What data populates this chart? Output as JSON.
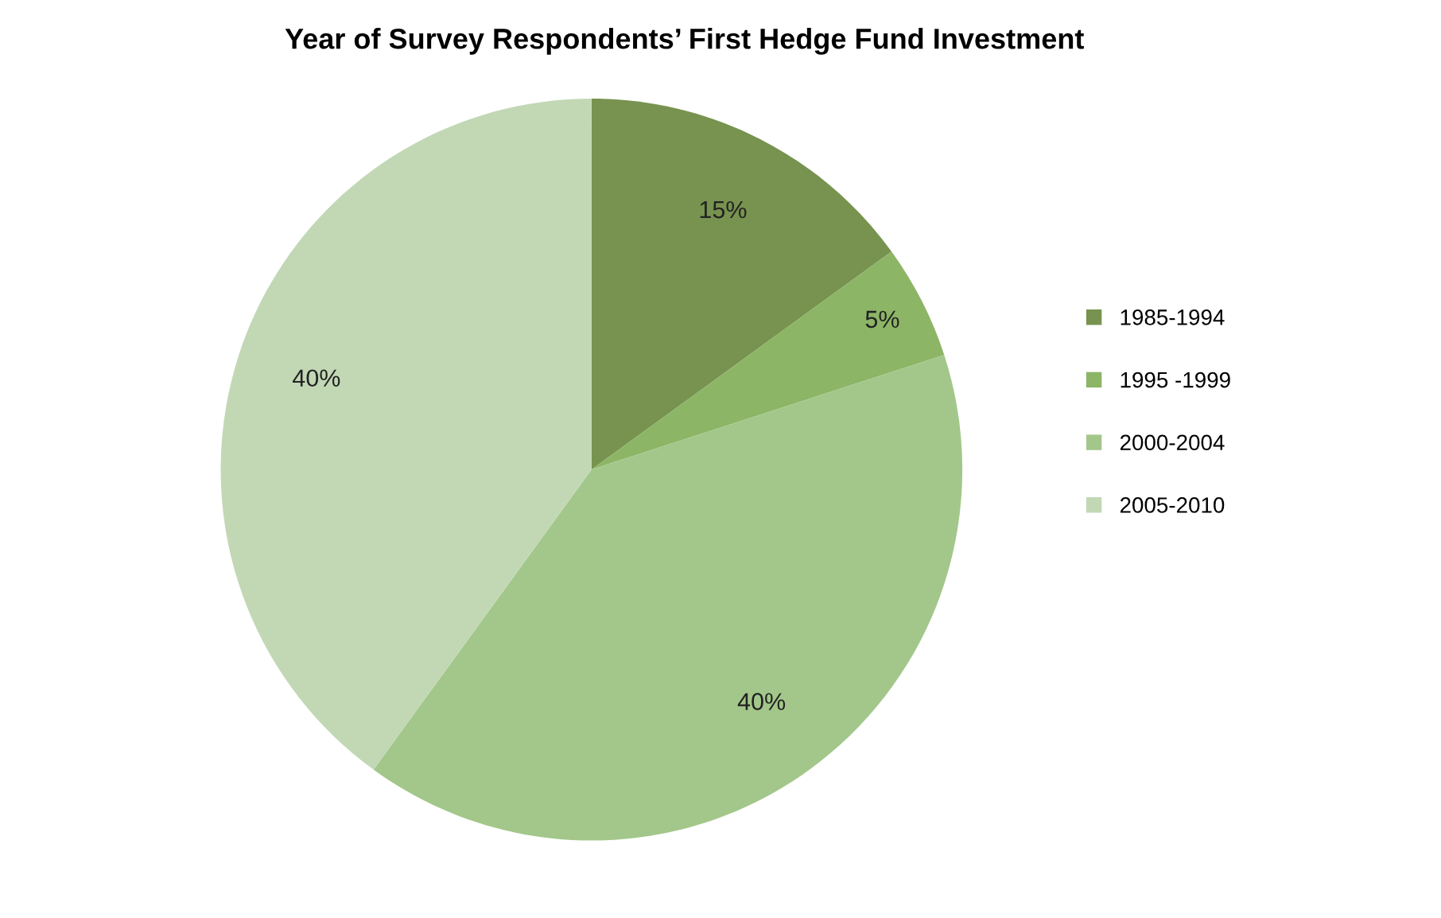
{
  "chart_data": {
    "type": "pie",
    "title": "Year of Survey Respondents’ First Hedge Fund Investment",
    "categories": [
      "1985-1994",
      "1995 -1999",
      "2000-2004",
      "2005-2010"
    ],
    "values": [
      15,
      5,
      40,
      40
    ],
    "colors": [
      "#77934f",
      "#8cb566",
      "#a3c78a",
      "#c2d8b5"
    ],
    "value_labels": [
      "15%",
      "5%",
      "40%",
      "40%"
    ],
    "legend": "right"
  }
}
